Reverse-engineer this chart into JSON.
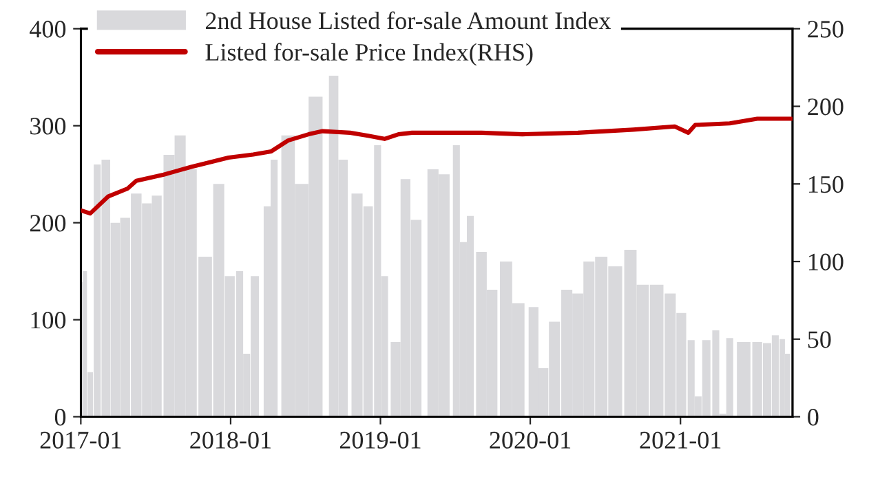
{
  "chart_data": {
    "type": "bar",
    "xlim": [
      "2017-01-01",
      "2021-10-01"
    ],
    "xticks": [
      {
        "value": "2017-01",
        "label": "2017-01"
      },
      {
        "value": "2018-01",
        "label": "2018-01"
      },
      {
        "value": "2019-01",
        "label": "2019-01"
      },
      {
        "value": "2020-01",
        "label": "2020-01"
      },
      {
        "value": "2021-01",
        "label": "2021-01"
      }
    ],
    "ylim": [
      0,
      400
    ],
    "yticks": [
      0,
      100,
      200,
      300,
      400
    ],
    "y2lim": [
      0,
      250
    ],
    "y2ticks": [
      0,
      50,
      100,
      150,
      200,
      250
    ],
    "grid": false,
    "legend": "top left",
    "series": [
      {
        "name": "2nd House Listed for-sale Amount Index",
        "color": "#d9d9dc",
        "x": [
          "2017-01-01",
          "2017-01-11",
          "2017-01-24",
          "2017-02-10",
          "2017-03-03",
          "2017-03-26",
          "2017-04-19",
          "2017-05-16",
          "2017-06-11",
          "2017-07-05",
          "2017-08-04",
          "2017-08-31",
          "2017-09-27",
          "2017-10-31",
          "2017-12-03",
          "2017-12-30",
          "2018-01-23",
          "2018-02-09",
          "2018-03-01",
          "2018-03-31",
          "2018-04-17",
          "2018-05-21",
          "2018-06-23",
          "2018-07-27",
          "2018-09-09",
          "2018-10-02",
          "2018-11-05",
          "2018-12-02",
          "2018-12-25",
          "2019-01-11",
          "2019-02-07",
          "2019-03-03",
          "2019-03-29",
          "2019-05-09",
          "2019-06-05",
          "2019-07-05",
          "2019-07-22",
          "2019-08-08",
          "2019-09-04",
          "2019-09-30",
          "2019-11-03",
          "2019-12-03",
          "2020-01-09",
          "2020-02-02",
          "2020-02-29",
          "2020-03-30",
          "2020-04-26",
          "2020-05-23",
          "2020-06-22",
          "2020-07-26",
          "2020-09-01",
          "2020-10-01",
          "2020-11-04",
          "2020-12-07",
          "2021-01-03",
          "2021-01-27",
          "2021-02-13",
          "2021-03-05",
          "2021-03-28",
          "2021-04-14",
          "2021-05-01",
          "2021-06-04",
          "2021-07-07",
          "2021-07-31",
          "2021-08-20",
          "2021-09-06",
          "2021-09-19"
        ],
        "values": [
          139,
          150,
          46,
          260,
          265,
          200,
          205,
          230,
          220,
          228,
          270,
          290,
          255,
          165,
          240,
          145,
          150,
          65,
          145,
          217,
          265,
          290,
          240,
          330,
          353,
          265,
          230,
          217,
          280,
          145,
          77,
          245,
          203,
          255,
          250,
          280,
          180,
          207,
          170,
          131,
          160,
          117,
          113,
          50,
          98,
          131,
          127,
          160,
          165,
          155,
          172,
          136,
          136,
          127,
          107,
          79,
          21,
          79,
          89,
          3,
          81,
          77,
          77,
          76,
          84,
          80,
          65
        ]
      },
      {
        "name": "Listed for-sale Price Index(RHS)",
        "type": "line",
        "axis": "y2",
        "color": "#c00000",
        "line_style": "solid",
        "x": [
          "2017-01-01",
          "2017-01-24",
          "2017-03-09",
          "2017-04-25",
          "2017-05-16",
          "2017-07-22",
          "2017-09-27",
          "2017-12-27",
          "2018-02-25",
          "2018-04-10",
          "2018-05-21",
          "2018-07-10",
          "2018-08-13",
          "2018-10-19",
          "2018-12-02",
          "2019-01-11",
          "2019-02-14",
          "2019-03-19",
          "2019-09-04",
          "2019-12-13",
          "2020-04-26",
          "2020-09-08",
          "2020-12-18",
          "2021-01-20",
          "2021-02-06",
          "2021-05-01",
          "2021-07-07",
          "2021-09-29"
        ],
        "values": [
          133,
          131,
          142,
          147,
          152,
          156,
          161,
          167,
          169,
          171,
          178,
          182,
          184,
          183,
          181,
          179,
          182,
          183,
          183,
          182,
          183,
          185,
          187,
          183,
          188,
          189,
          192,
          192
        ]
      }
    ]
  }
}
